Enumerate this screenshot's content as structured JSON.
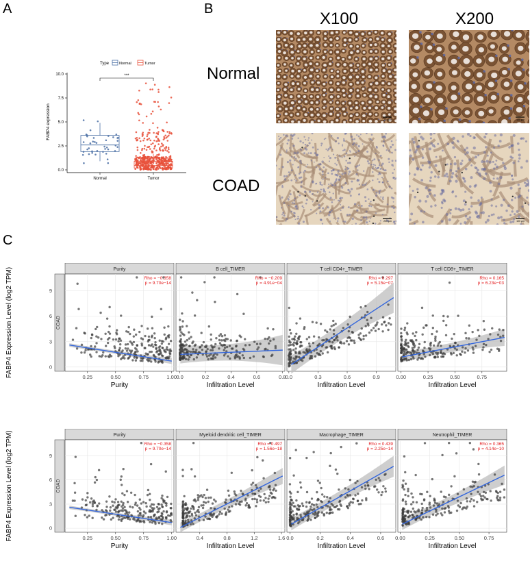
{
  "panels": {
    "a": {
      "letter": "A"
    },
    "b": {
      "letter": "B"
    },
    "c": {
      "letter": "C"
    }
  },
  "micro": {
    "col_labels": [
      "X100",
      "X200"
    ],
    "row_labels": [
      "Normal",
      "COAD"
    ],
    "scale_labels": [
      "200 μm",
      "100 μm",
      "200 μm",
      "100 μm"
    ]
  },
  "colors": {
    "normal": "#4a6fa5",
    "tumor": "#e8503a",
    "point": "#3c3c3c",
    "fit_line": "#3366dd",
    "ci_band": "#bdbdbd",
    "strip": "#d9d9d9",
    "stat": "#e31a1c"
  },
  "chart_data": [
    {
      "type": "box",
      "ylabel": "FABP4 expression",
      "legend": {
        "title": "Type",
        "entries": [
          "Normal",
          "Tumor"
        ],
        "placement": "top"
      },
      "categories": [
        "Normal",
        "Tumor"
      ],
      "ylim": [
        0,
        10
      ],
      "yticks": [
        "0.0",
        "2.5",
        "5.0",
        "7.5",
        "10.0"
      ],
      "significance": "***",
      "boxes": [
        {
          "name": "Normal",
          "q1": 1.9,
          "median": 2.6,
          "q3": 3.6,
          "whisker_low": 0.9,
          "whisker_high": 4.9,
          "n_points": 40
        },
        {
          "name": "Tumor",
          "q1": 0.2,
          "median": 0.45,
          "q3": 0.9,
          "whisker_low": 0.0,
          "whisker_high": 1.7,
          "n_points": 450,
          "max": 9.1
        }
      ]
    },
    {
      "type": "scatter",
      "group_label": "COAD",
      "ylabel": "FABP4 Expression Level (log2 TPM)",
      "ylim": [
        -0.5,
        11
      ],
      "yticks": [
        "0",
        "3",
        "6",
        "9"
      ],
      "facets": [
        {
          "title": "Purity",
          "xlabel": "Purity",
          "rho": "Rho = −0.358",
          "p": "p = 9.70e−14",
          "xlim": [
            0.05,
            1.02
          ],
          "xticks": [
            "0.25",
            "0.50",
            "0.75",
            "1.00"
          ],
          "xtick_values": [
            0.25,
            0.5,
            0.75,
            1.0
          ],
          "fit": [
            2.6,
            0.7
          ],
          "ci": 0.35,
          "xdist": [
            0.1,
            1.0,
            0.6
          ]
        },
        {
          "title": "B cell_TIMER",
          "xlabel": "Infiltration Level",
          "rho": "Rho = −0.209",
          "p": "p = 4.91e−04",
          "xlim": [
            -0.03,
            0.82
          ],
          "xticks": [
            "0.0",
            "0.2",
            "0.4",
            "0.6",
            "0.8"
          ],
          "xtick_values": [
            0.0,
            0.2,
            0.4,
            0.6,
            0.8
          ],
          "fit": [
            1.5,
            2.0
          ],
          "ci": 1.8,
          "xdist": [
            0.0,
            0.75,
            0.12
          ]
        },
        {
          "title": "T cell CD4+_TIMER",
          "xlabel": "Infiltration Level",
          "rho": "Rho = 0.297",
          "p": "p = 5.15e−07",
          "xlim": [
            -0.02,
            1.1
          ],
          "xticks": [
            "0.0",
            "0.3",
            "0.6",
            "0.9"
          ],
          "xtick_values": [
            0.0,
            0.3,
            0.6,
            0.9
          ],
          "fit": [
            0.3,
            8.2
          ],
          "ci": 1.8,
          "xdist": [
            0.0,
            1.05,
            0.1
          ]
        },
        {
          "title": "T cell CD8+_TIMER",
          "xlabel": "Infiltration Level",
          "rho": "Rho = 0.165",
          "p": "p = 6.23e−03",
          "xlim": [
            -0.03,
            0.98
          ],
          "xticks": [
            "0.00",
            "0.25",
            "0.50",
            "0.75"
          ],
          "xtick_values": [
            0.0,
            0.25,
            0.5,
            0.75
          ],
          "fit": [
            1.2,
            3.5
          ],
          "ci": 1.0,
          "xdist": [
            0.0,
            0.95,
            0.2
          ]
        }
      ]
    },
    {
      "type": "scatter",
      "group_label": "COAD",
      "ylabel": "FABP4 Expression Level (log2 TPM)",
      "ylim": [
        -0.5,
        11
      ],
      "yticks": [
        "0",
        "3",
        "6",
        "9"
      ],
      "facets": [
        {
          "title": "Purity",
          "xlabel": "Purity",
          "rho": "Rho = −0.358",
          "p": "p = 9.70e−14",
          "xlim": [
            0.05,
            1.02
          ],
          "xticks": [
            "0.25",
            "0.50",
            "0.75",
            "1.00"
          ],
          "xtick_values": [
            0.25,
            0.5,
            0.75,
            1.0
          ],
          "fit": [
            2.6,
            0.7
          ],
          "ci": 0.35,
          "xdist": [
            0.1,
            1.0,
            0.6
          ]
        },
        {
          "title": "Myeloid dendritic cell_TIMER",
          "xlabel": "Infiltration Level",
          "rho": "Rho = 0.497",
          "p": "p = 1.56e−18",
          "xlim": [
            0.05,
            1.65
          ],
          "xticks": [
            "0.4",
            "0.8",
            "1.2",
            "1.6"
          ],
          "xtick_values": [
            0.4,
            0.8,
            1.2,
            1.6
          ],
          "fit": [
            0.1,
            6.5
          ],
          "ci": 1.0,
          "xdist": [
            0.15,
            1.55,
            0.6
          ]
        },
        {
          "title": "Macrophage_TIMER",
          "xlabel": "Infiltration Level",
          "rho": "Rho = 0.439",
          "p": "p = 2.25e−14",
          "xlim": [
            -0.02,
            0.7
          ],
          "xticks": [
            "0.0",
            "0.2",
            "0.4",
            "0.6"
          ],
          "xtick_values": [
            0.0,
            0.2,
            0.4,
            0.6
          ],
          "fit": [
            0.5,
            7.7
          ],
          "ci": 1.3,
          "xdist": [
            0.0,
            0.65,
            0.2
          ]
        },
        {
          "title": "Neutrophil_TIMER",
          "xlabel": "Infiltration Level",
          "rho": "Rho = 0.365",
          "p": "p = 4.14e−10",
          "xlim": [
            -0.02,
            0.9
          ],
          "xticks": [
            "0.00",
            "0.25",
            "0.50",
            "0.75"
          ],
          "xtick_values": [
            0.0,
            0.25,
            0.5,
            0.75
          ],
          "fit": [
            0.5,
            6.6
          ],
          "ci": 1.2,
          "xdist": [
            0.02,
            0.88,
            0.25
          ]
        }
      ]
    }
  ]
}
